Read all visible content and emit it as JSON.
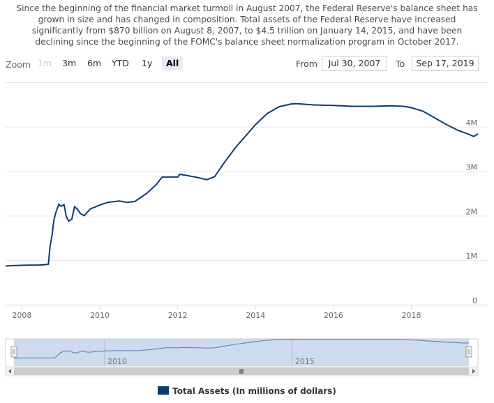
{
  "description": [
    "Since the beginning of the financial market turmoil in August 2007, the Federal Reserve's balance sheet has",
    "grown in size and has changed in composition. Total assets of the Federal Reserve have increased",
    "significantly from $870 billion on August 8, 2007, to $4.5 trillion on January 14, 2015, and have been",
    "declining since the beginning of the FOMC's balance sheet normalization program in October 2017."
  ],
  "range_selector": {
    "zoom_label": "Zoom",
    "buttons": [
      {
        "label": "1m",
        "state": "disabled"
      },
      {
        "label": "3m",
        "state": "normal"
      },
      {
        "label": "6m",
        "state": "normal"
      },
      {
        "label": "YTD",
        "state": "normal"
      },
      {
        "label": "1y",
        "state": "normal"
      },
      {
        "label": "All",
        "state": "active"
      }
    ],
    "from_label": "From",
    "from_value": "Jul 30, 2007",
    "to_label": "To",
    "to_value": "Sep 17, 2019"
  },
  "colors": {
    "series": "#0b3c6e",
    "navigator_mask": "#c6d3ea",
    "navigator_line": "#6b88b8",
    "grid": "#e6e6e6"
  },
  "chart_data": {
    "type": "line",
    "xlim": [
      2007.58,
      2019.71
    ],
    "ylim": [
      0,
      5000000
    ],
    "x_ticks": [
      "2008",
      "2010",
      "2012",
      "2014",
      "2016",
      "2018"
    ],
    "y_ticks": [
      "0",
      "1M",
      "2M",
      "3M",
      "4M"
    ],
    "navigator_ticks": [
      "2010",
      "2015"
    ],
    "grid": true,
    "legend_position": "bottom-center",
    "series": [
      {
        "name": "Total Assets (In millions of dollars)",
        "points": [
          [
            2007.58,
            870000
          ],
          [
            2007.8,
            880000
          ],
          [
            2008.0,
            885000
          ],
          [
            2008.2,
            890000
          ],
          [
            2008.4,
            890000
          ],
          [
            2008.6,
            900000
          ],
          [
            2008.68,
            910000
          ],
          [
            2008.72,
            1300000
          ],
          [
            2008.78,
            1600000
          ],
          [
            2008.82,
            1900000
          ],
          [
            2008.88,
            2100000
          ],
          [
            2008.95,
            2260000
          ],
          [
            2009.0,
            2210000
          ],
          [
            2009.08,
            2250000
          ],
          [
            2009.14,
            1980000
          ],
          [
            2009.2,
            1880000
          ],
          [
            2009.28,
            1920000
          ],
          [
            2009.35,
            2200000
          ],
          [
            2009.42,
            2150000
          ],
          [
            2009.5,
            2050000
          ],
          [
            2009.6,
            2000000
          ],
          [
            2009.75,
            2150000
          ],
          [
            2010.0,
            2240000
          ],
          [
            2010.2,
            2300000
          ],
          [
            2010.5,
            2330000
          ],
          [
            2010.7,
            2300000
          ],
          [
            2010.9,
            2320000
          ],
          [
            2011.2,
            2500000
          ],
          [
            2011.45,
            2700000
          ],
          [
            2011.6,
            2870000
          ],
          [
            2011.9,
            2870000
          ],
          [
            2012.0,
            2870000
          ],
          [
            2012.05,
            2930000
          ],
          [
            2012.2,
            2910000
          ],
          [
            2012.5,
            2860000
          ],
          [
            2012.75,
            2810000
          ],
          [
            2012.95,
            2880000
          ],
          [
            2013.2,
            3200000
          ],
          [
            2013.5,
            3550000
          ],
          [
            2013.8,
            3850000
          ],
          [
            2014.0,
            4050000
          ],
          [
            2014.3,
            4300000
          ],
          [
            2014.6,
            4450000
          ],
          [
            2014.9,
            4510000
          ],
          [
            2015.04,
            4520000
          ],
          [
            2015.5,
            4490000
          ],
          [
            2016.0,
            4480000
          ],
          [
            2016.5,
            4460000
          ],
          [
            2017.0,
            4460000
          ],
          [
            2017.5,
            4470000
          ],
          [
            2017.8,
            4460000
          ],
          [
            2018.0,
            4430000
          ],
          [
            2018.3,
            4350000
          ],
          [
            2018.6,
            4200000
          ],
          [
            2018.9,
            4050000
          ],
          [
            2019.2,
            3920000
          ],
          [
            2019.45,
            3840000
          ],
          [
            2019.6,
            3780000
          ],
          [
            2019.71,
            3840000
          ]
        ]
      }
    ]
  }
}
